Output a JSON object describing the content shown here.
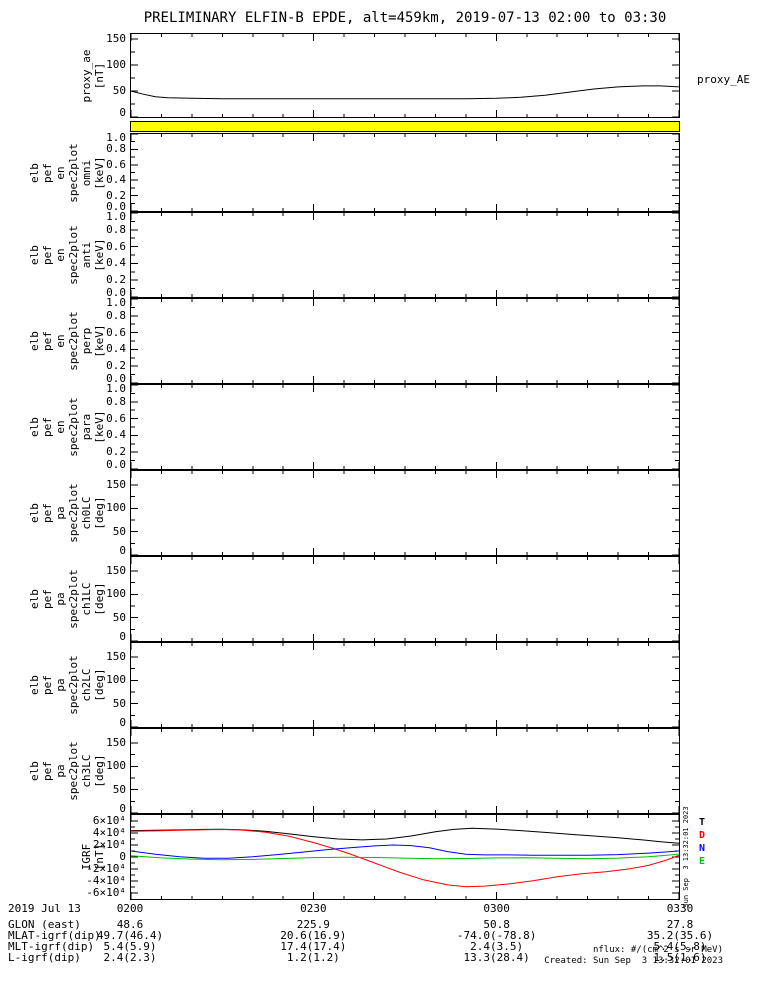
{
  "title": "PRELIMINARY ELFIN-B EPDE, alt=459km, 2019-07-13 02:00 to 03:30",
  "footer": {
    "units_note": "nflux: #/(cm^2 s sr MeV)",
    "created": "Created: Sun Sep  3 13:32:01 2023",
    "side_timestamp": "Sun Sep  3 13:32:01 2023"
  },
  "x_axis": {
    "date_label": "2019 Jul 13",
    "start_minutes": 0,
    "end_minutes": 90,
    "major_tick_minutes": [
      0,
      30,
      60,
      90
    ],
    "major_tick_labels": [
      "0200",
      "0230",
      "0300",
      "0330"
    ],
    "minor_tick_step_minutes": 5
  },
  "bottom_rows": [
    {
      "label": "GLON (east)",
      "values": [
        "48.6",
        "225.9",
        "50.8",
        "27.8"
      ]
    },
    {
      "label": "MLAT-igrf(dip)",
      "values": [
        "49.7(46.4)",
        "20.6(16.9)",
        "-74.0(-78.8)",
        "35.2(35.6)"
      ]
    },
    {
      "label": "MLT-igrf(dip)",
      "values": [
        "5.4(5.9)",
        "17.4(17.4)",
        "2.4(3.5)",
        "5.4(5.8)"
      ]
    },
    {
      "label": "L-igrf(dip)",
      "values": [
        "2.4(2.3)",
        "1.2(1.2)",
        "13.3(28.4)",
        "1.5(1.6)"
      ]
    }
  ],
  "chart_data": [
    {
      "id": "proxy-ae",
      "type": "line",
      "ylabel_lines": [
        "proxy_ae",
        "[nT]"
      ],
      "right_label": "proxy_AE",
      "ylim": [
        0,
        160
      ],
      "yticks": [
        0,
        50,
        100,
        150
      ],
      "ytick_labels": [
        "0",
        "50",
        "100",
        "150"
      ],
      "series": [
        {
          "name": "proxy_AE",
          "color": "#000000",
          "x": [
            0,
            2,
            4,
            6,
            10,
            15,
            20,
            25,
            30,
            35,
            40,
            45,
            50,
            55,
            60,
            64,
            68,
            72,
            76,
            80,
            84,
            87,
            90
          ],
          "y": [
            50,
            44,
            39,
            37,
            36,
            35,
            35,
            35,
            35,
            35,
            35,
            35,
            35,
            35,
            36,
            38,
            42,
            48,
            54,
            58,
            60,
            60,
            58
          ]
        }
      ]
    },
    {
      "id": "flag-bar",
      "type": "flag",
      "fill": "#ffff00",
      "ylabel_lines": [],
      "ylim": [
        0,
        1
      ],
      "yticks": [],
      "ytick_labels": [],
      "series": []
    },
    {
      "id": "en-omni",
      "type": "spectrogram",
      "ylabel_lines": [
        "elb",
        "pef",
        "en",
        "spec2plot",
        "omni",
        "[keV]"
      ],
      "ylim": [
        0,
        1
      ],
      "yticks": [
        0,
        0.2,
        0.4,
        0.6,
        0.8,
        1
      ],
      "ytick_labels": [
        "0.0",
        "0.2",
        "0.4",
        "0.6",
        "0.8",
        "1.0"
      ],
      "series": []
    },
    {
      "id": "en-anti",
      "type": "spectrogram",
      "ylabel_lines": [
        "elb",
        "pef",
        "en",
        "spec2plot",
        "anti",
        "[keV]"
      ],
      "ylim": [
        0,
        1
      ],
      "yticks": [
        0,
        0.2,
        0.4,
        0.6,
        0.8,
        1
      ],
      "ytick_labels": [
        "0.0",
        "0.2",
        "0.4",
        "0.6",
        "0.8",
        "1.0"
      ],
      "series": []
    },
    {
      "id": "en-perp",
      "type": "spectrogram",
      "ylabel_lines": [
        "elb",
        "pef",
        "en",
        "spec2plot",
        "perp",
        "[keV]"
      ],
      "ylim": [
        0,
        1
      ],
      "yticks": [
        0,
        0.2,
        0.4,
        0.6,
        0.8,
        1
      ],
      "ytick_labels": [
        "0.0",
        "0.2",
        "0.4",
        "0.6",
        "0.8",
        "1.0"
      ],
      "series": []
    },
    {
      "id": "en-para",
      "type": "spectrogram",
      "ylabel_lines": [
        "elb",
        "pef",
        "en",
        "spec2plot",
        "para",
        "[keV]"
      ],
      "ylim": [
        0,
        1
      ],
      "yticks": [
        0,
        0.2,
        0.4,
        0.6,
        0.8,
        1
      ],
      "ytick_labels": [
        "0.0",
        "0.2",
        "0.4",
        "0.6",
        "0.8",
        "1.0"
      ],
      "series": []
    },
    {
      "id": "pa-ch0lc",
      "type": "spectrogram",
      "ylabel_lines": [
        "elb",
        "pef",
        "pa",
        "spec2plot",
        "ch0LC",
        "[deg]"
      ],
      "ylim": [
        0,
        180
      ],
      "yticks": [
        0,
        50,
        100,
        150
      ],
      "ytick_labels": [
        "0",
        "50",
        "100",
        "150"
      ],
      "series": []
    },
    {
      "id": "pa-ch1lc",
      "type": "spectrogram",
      "ylabel_lines": [
        "elb",
        "pef",
        "pa",
        "spec2plot",
        "ch1LC",
        "[deg]"
      ],
      "ylim": [
        0,
        180
      ],
      "yticks": [
        0,
        50,
        100,
        150
      ],
      "ytick_labels": [
        "0",
        "50",
        "100",
        "150"
      ],
      "series": []
    },
    {
      "id": "pa-ch2lc",
      "type": "spectrogram",
      "ylabel_lines": [
        "elb",
        "pef",
        "pa",
        "spec2plot",
        "ch2LC",
        "[deg]"
      ],
      "ylim": [
        0,
        180
      ],
      "yticks": [
        0,
        50,
        100,
        150
      ],
      "ytick_labels": [
        "0",
        "50",
        "100",
        "150"
      ],
      "series": []
    },
    {
      "id": "pa-ch3lc",
      "type": "spectrogram",
      "ylabel_lines": [
        "elb",
        "pef",
        "pa",
        "spec2plot",
        "ch3LC",
        "[deg]"
      ],
      "ylim": [
        0,
        180
      ],
      "yticks": [
        0,
        50,
        100,
        150
      ],
      "ytick_labels": [
        "0",
        "50",
        "100",
        "150"
      ],
      "series": []
    },
    {
      "id": "igrf",
      "type": "line",
      "ylabel_lines": [
        "IGRF",
        "[nT]"
      ],
      "right_letter_labels": [
        {
          "text": "T",
          "color": "#000000"
        },
        {
          "text": "D",
          "color": "#ff0000"
        },
        {
          "text": "N",
          "color": "#0000ff"
        },
        {
          "text": "E",
          "color": "#00c000"
        }
      ],
      "ylim": [
        -70000,
        70000
      ],
      "yticks": [
        -60000,
        -40000,
        -20000,
        0,
        20000,
        40000,
        60000
      ],
      "ytick_labels": [
        "-6×10⁴",
        "-4×10⁴",
        "-2×10⁴",
        "0",
        "2×10⁴",
        "4×10⁴",
        "6×10⁴"
      ],
      "series": [
        {
          "name": "T",
          "color": "#000000",
          "x": [
            0,
            4,
            8,
            12,
            15,
            18,
            22,
            26,
            30,
            34,
            38,
            42,
            46,
            50,
            53,
            56,
            60,
            64,
            68,
            72,
            76,
            80,
            84,
            87,
            90
          ],
          "y": [
            44000,
            44500,
            45200,
            46000,
            46200,
            45500,
            43000,
            38500,
            33800,
            30000,
            28500,
            30000,
            35000,
            42000,
            46000,
            47800,
            46500,
            44000,
            41000,
            38000,
            35000,
            32000,
            28500,
            25500,
            23000
          ]
        },
        {
          "name": "D",
          "color": "#ff0000",
          "x": [
            0,
            4,
            8,
            12,
            15,
            18,
            22,
            26,
            30,
            33,
            36,
            40,
            44,
            48,
            52,
            55,
            58,
            62,
            66,
            70,
            74,
            78,
            82,
            85,
            88,
            90
          ],
          "y": [
            43000,
            43500,
            44500,
            45500,
            45800,
            45000,
            41500,
            34500,
            24000,
            15000,
            5000,
            -10000,
            -25000,
            -38000,
            -46500,
            -49500,
            -48500,
            -45000,
            -39500,
            -33000,
            -28000,
            -24500,
            -19500,
            -14000,
            -5000,
            3000
          ]
        },
        {
          "name": "N",
          "color": "#0000ff",
          "x": [
            0,
            4,
            8,
            12,
            16,
            20,
            24,
            28,
            32,
            36,
            40,
            43,
            46,
            49,
            52,
            55,
            58,
            62,
            66,
            70,
            75,
            80,
            85,
            88,
            90
          ],
          "y": [
            10000,
            4500,
            500,
            -2000,
            -2000,
            500,
            4000,
            8000,
            12000,
            15500,
            18500,
            20000,
            19000,
            15500,
            9000,
            4500,
            3500,
            3500,
            3000,
            3000,
            3000,
            4000,
            6500,
            8500,
            10000
          ]
        },
        {
          "name": "E",
          "color": "#00c000",
          "x": [
            0,
            5,
            10,
            15,
            20,
            25,
            30,
            35,
            40,
            45,
            50,
            55,
            60,
            65,
            70,
            75,
            80,
            85,
            88,
            90
          ],
          "y": [
            2000,
            -1500,
            -3500,
            -4500,
            -4000,
            -2500,
            -1000,
            -500,
            -800,
            -1800,
            -3000,
            -2500,
            -1500,
            -1200,
            -2000,
            -2800,
            -1800,
            500,
            3000,
            5000
          ]
        }
      ]
    }
  ]
}
